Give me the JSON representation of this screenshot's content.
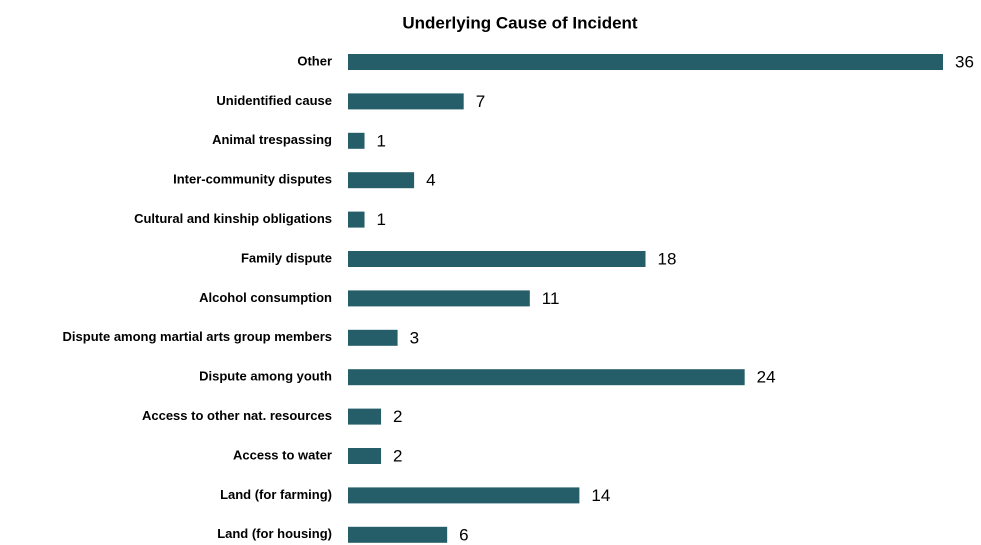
{
  "chart_data": {
    "type": "bar",
    "orientation": "horizontal",
    "title": "Underlying Cause of Incident",
    "categories": [
      "Other",
      "Unidentified cause",
      "Animal trespassing",
      "Inter-community disputes",
      "Cultural and kinship obligations",
      "Family dispute",
      "Alcohol consumption",
      "Dispute among martial arts group members",
      "Dispute among youth",
      "Access to other nat. resources",
      "Access to water",
      "Land (for farming)",
      "Land (for housing)"
    ],
    "values": [
      36,
      7,
      1,
      4,
      1,
      18,
      11,
      3,
      24,
      2,
      2,
      14,
      6
    ],
    "color": "#255e69",
    "data_labels": true
  }
}
